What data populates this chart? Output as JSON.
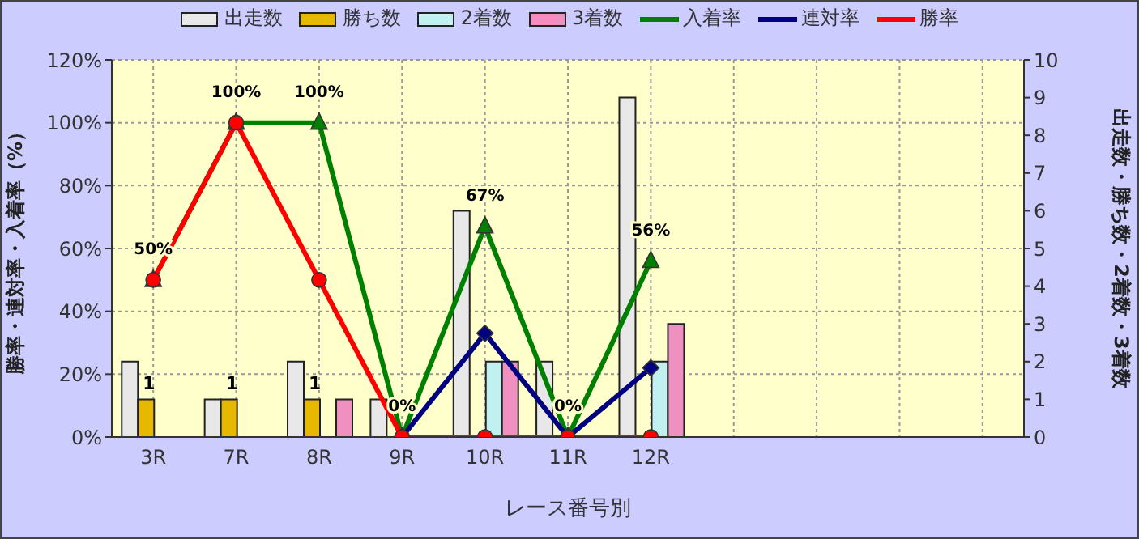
{
  "chart_data": {
    "type": "bar",
    "xlabel": "レース番号別",
    "ylabel": "勝率・連対率・入着率（%）",
    "y2label": "出走数・勝ち数・2着数・3着数",
    "categories": [
      "3R",
      "7R",
      "8R",
      "9R",
      "10R",
      "11R",
      "12R",
      null,
      null,
      null,
      null
    ],
    "series": [
      {
        "name": "出走数",
        "axis": "y2",
        "color": "#e8e8e8",
        "values": [
          2,
          1,
          2,
          1,
          6,
          2,
          9,
          null,
          null,
          null,
          null
        ]
      },
      {
        "name": "勝ち数",
        "axis": "y2",
        "color": "#e6b800",
        "values": [
          1,
          1,
          1,
          0,
          0,
          0,
          0,
          null,
          null,
          null,
          null
        ],
        "value_labels": [
          "1",
          "1",
          "1",
          null,
          null,
          null,
          null,
          null,
          null,
          null,
          null
        ]
      },
      {
        "name": "2着数",
        "axis": "y2",
        "color": "#c0f0f0",
        "values": [
          0,
          0,
          0,
          0,
          2,
          0,
          2,
          null,
          null,
          null,
          null
        ]
      },
      {
        "name": "3着数",
        "axis": "y2",
        "color": "#f090c0",
        "values": [
          0,
          0,
          1,
          0,
          2,
          0,
          3,
          null,
          null,
          null,
          null
        ]
      },
      {
        "name": "入着率",
        "type": "line",
        "axis": "y",
        "marker": "triangle",
        "color": "#008000",
        "values": [
          50,
          100,
          100,
          0,
          67,
          0,
          56,
          null,
          null,
          null,
          null
        ],
        "value_labels": [
          "50%",
          "100%",
          "100%",
          "0%",
          "67%",
          "0%",
          "56%",
          null,
          null,
          null,
          null
        ]
      },
      {
        "name": "連対率",
        "type": "line",
        "axis": "y",
        "marker": "diamond",
        "color": "#000080",
        "values": [
          null,
          null,
          null,
          0,
          33,
          0,
          22,
          null,
          null,
          null,
          null
        ]
      },
      {
        "name": "勝率",
        "type": "line",
        "axis": "y",
        "marker": "circle",
        "color": "#ff0000",
        "values": [
          50,
          100,
          50,
          0,
          0,
          0,
          0,
          null,
          null,
          null,
          null
        ]
      }
    ],
    "ylim": [
      0,
      120
    ],
    "yticks": [
      {
        "value": 0,
        "label": "0%"
      },
      {
        "value": 20,
        "label": "20%"
      },
      {
        "value": 40,
        "label": "40%"
      },
      {
        "value": 60,
        "label": "60%"
      },
      {
        "value": 80,
        "label": "80%"
      },
      {
        "value": 100,
        "label": "100%"
      },
      {
        "value": 120,
        "label": "120%"
      }
    ],
    "y2lim": [
      0,
      10
    ],
    "y2ticks": [
      0,
      1,
      2,
      3,
      4,
      5,
      6,
      7,
      8,
      9,
      10
    ],
    "grid": true,
    "legend": "top"
  }
}
